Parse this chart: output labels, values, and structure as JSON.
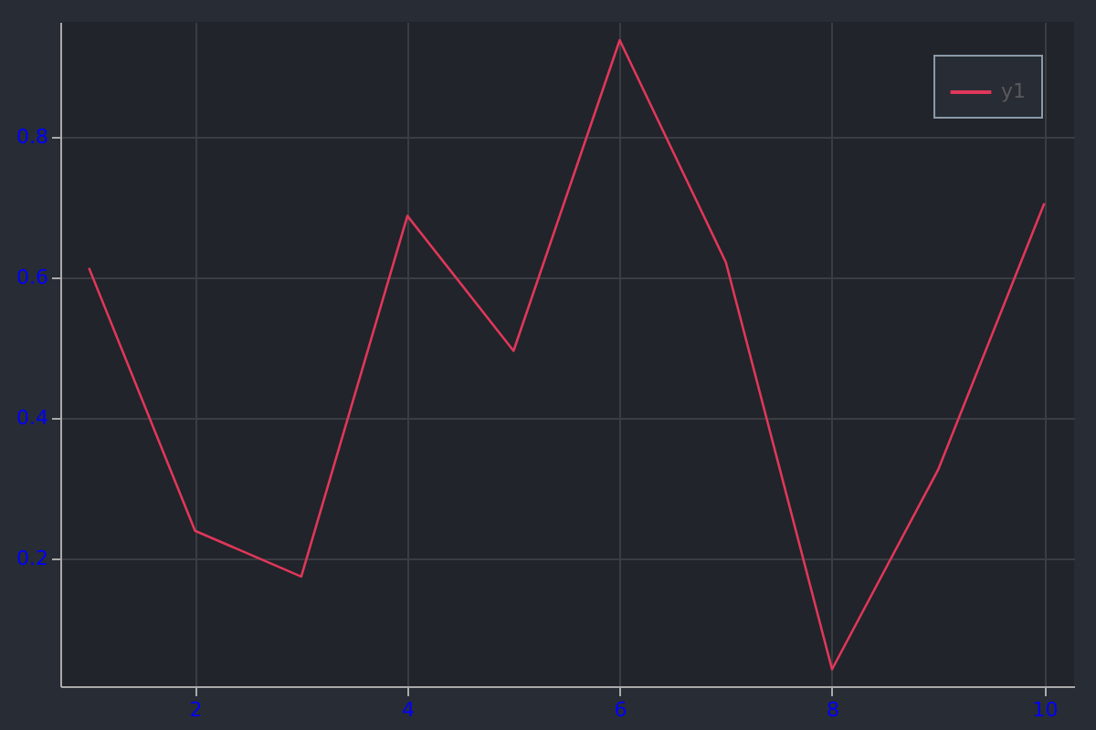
{
  "chart_data": {
    "type": "line",
    "x": [
      1,
      2,
      3,
      4,
      5,
      6,
      7,
      8,
      9,
      10
    ],
    "series": [
      {
        "name": "y1",
        "color": "#e0375a",
        "values": [
          0.613,
          0.239,
          0.174,
          0.687,
          0.495,
          0.937,
          0.621,
          0.042,
          0.326,
          0.705
        ]
      }
    ],
    "xlim": [
      0.73,
      10.28
    ],
    "xticks": [
      2,
      4,
      6,
      8,
      10
    ],
    "ylim": [
      0.018,
      0.963
    ],
    "yticks": [
      0.2,
      0.4,
      0.6,
      0.8
    ],
    "grid": true,
    "legend": "top right",
    "marker": "none",
    "line_style": "solid"
  }
}
